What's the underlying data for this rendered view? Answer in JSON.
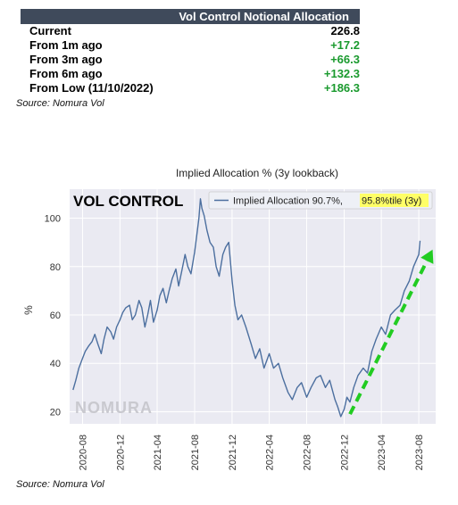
{
  "table": {
    "header": "Vol Control Notional Allocation",
    "rows": [
      {
        "label": "Current",
        "value": "226.8",
        "positive": false
      },
      {
        "label": "From 1m ago",
        "value": "+17.2",
        "positive": true
      },
      {
        "label": "From 3m ago",
        "value": "+66.3",
        "positive": true
      },
      {
        "label": "From 6m ago",
        "value": "+132.3",
        "positive": true
      },
      {
        "label": "From Low (11/10/2022)",
        "value": "+186.3",
        "positive": true
      }
    ],
    "source": "Source: Nomura Vol"
  },
  "chart_data": {
    "type": "line",
    "title": "Implied Allocation % (3y lookback)",
    "overlay_label": "VOL CONTROL",
    "watermark": "NOMURA",
    "ylabel": "%",
    "xlabel": "",
    "ylim": [
      15,
      112
    ],
    "yticks": [
      20,
      40,
      60,
      80,
      100
    ],
    "xlim": [
      "2020-06-20",
      "2023-09-25"
    ],
    "xticks": [
      "2020-08",
      "2020-12",
      "2021-04",
      "2021-08",
      "2021-12",
      "2022-04",
      "2022-08",
      "2022-12",
      "2023-04",
      "2023-08"
    ],
    "grid": true,
    "legend": {
      "placement": "top-right",
      "label": "Implied Allocation 90.7%,",
      "highlight": "95.8%tile (3y)"
    },
    "colors": {
      "line": "#4c6f9f",
      "background": "#eaeaf2",
      "grid": "#ffffff",
      "arrow": "#22cc22",
      "highlight": "#ffff66"
    },
    "series": [
      {
        "x": [
          "2020-07-01",
          "2020-07-10",
          "2020-07-20",
          "2020-08-01",
          "2020-08-10",
          "2020-08-20",
          "2020-09-01",
          "2020-09-10",
          "2020-09-20",
          "2020-10-01",
          "2020-10-10",
          "2020-10-20",
          "2020-11-01",
          "2020-11-10",
          "2020-11-20",
          "2020-12-01",
          "2020-12-10",
          "2020-12-20",
          "2021-01-01",
          "2021-01-10",
          "2021-01-20",
          "2021-02-01",
          "2021-02-10",
          "2021-02-20",
          "2021-03-01",
          "2021-03-10",
          "2021-03-20",
          "2021-04-01",
          "2021-04-10",
          "2021-04-20",
          "2021-05-01",
          "2021-05-10",
          "2021-05-20",
          "2021-06-01",
          "2021-06-10",
          "2021-06-20",
          "2021-07-01",
          "2021-07-10",
          "2021-07-20",
          "2021-08-01",
          "2021-08-10",
          "2021-08-15",
          "2021-08-20",
          "2021-08-25",
          "2021-09-01",
          "2021-09-10",
          "2021-09-20",
          "2021-10-01",
          "2021-10-10",
          "2021-10-20",
          "2021-11-01",
          "2021-11-10",
          "2021-11-20",
          "2021-12-01",
          "2021-12-10",
          "2021-12-20",
          "2022-01-01",
          "2022-01-15",
          "2022-02-01",
          "2022-02-15",
          "2022-03-01",
          "2022-03-15",
          "2022-04-01",
          "2022-04-15",
          "2022-05-01",
          "2022-05-15",
          "2022-06-01",
          "2022-06-15",
          "2022-07-01",
          "2022-07-15",
          "2022-08-01",
          "2022-08-15",
          "2022-09-01",
          "2022-09-15",
          "2022-10-01",
          "2022-10-15",
          "2022-11-01",
          "2022-11-10",
          "2022-11-20",
          "2022-12-01",
          "2022-12-10",
          "2022-12-20",
          "2023-01-01",
          "2023-01-15",
          "2023-02-01",
          "2023-02-15",
          "2023-03-01",
          "2023-03-15",
          "2023-04-01",
          "2023-04-15",
          "2023-05-01",
          "2023-05-15",
          "2023-06-01",
          "2023-06-15",
          "2023-07-01",
          "2023-07-15",
          "2023-08-01",
          "2023-08-05"
        ],
        "values": [
          29,
          33,
          38,
          42,
          45,
          47,
          49,
          52,
          48,
          44,
          50,
          55,
          53,
          50,
          55,
          58,
          61,
          63,
          64,
          58,
          60,
          66,
          63,
          55,
          60,
          66,
          57,
          62,
          68,
          71,
          65,
          70,
          75,
          79,
          72,
          78,
          85,
          80,
          77,
          86,
          95,
          100,
          108,
          104,
          101,
          95,
          90,
          88,
          80,
          76,
          85,
          88,
          90,
          74,
          64,
          58,
          60,
          55,
          48,
          42,
          46,
          38,
          44,
          38,
          40,
          34,
          28,
          25,
          30,
          32,
          26,
          30,
          34,
          35,
          30,
          33,
          25,
          22,
          18,
          21,
          26,
          24,
          30,
          35,
          38,
          36,
          45,
          50,
          55,
          52,
          60,
          62,
          64,
          70,
          74,
          80,
          85,
          90.7
        ]
      }
    ],
    "arrow": {
      "from": [
        "2022-12-20",
        19
      ],
      "to": [
        "2023-09-15",
        87
      ]
    }
  },
  "source_bottom": "Source: Nomura Vol"
}
